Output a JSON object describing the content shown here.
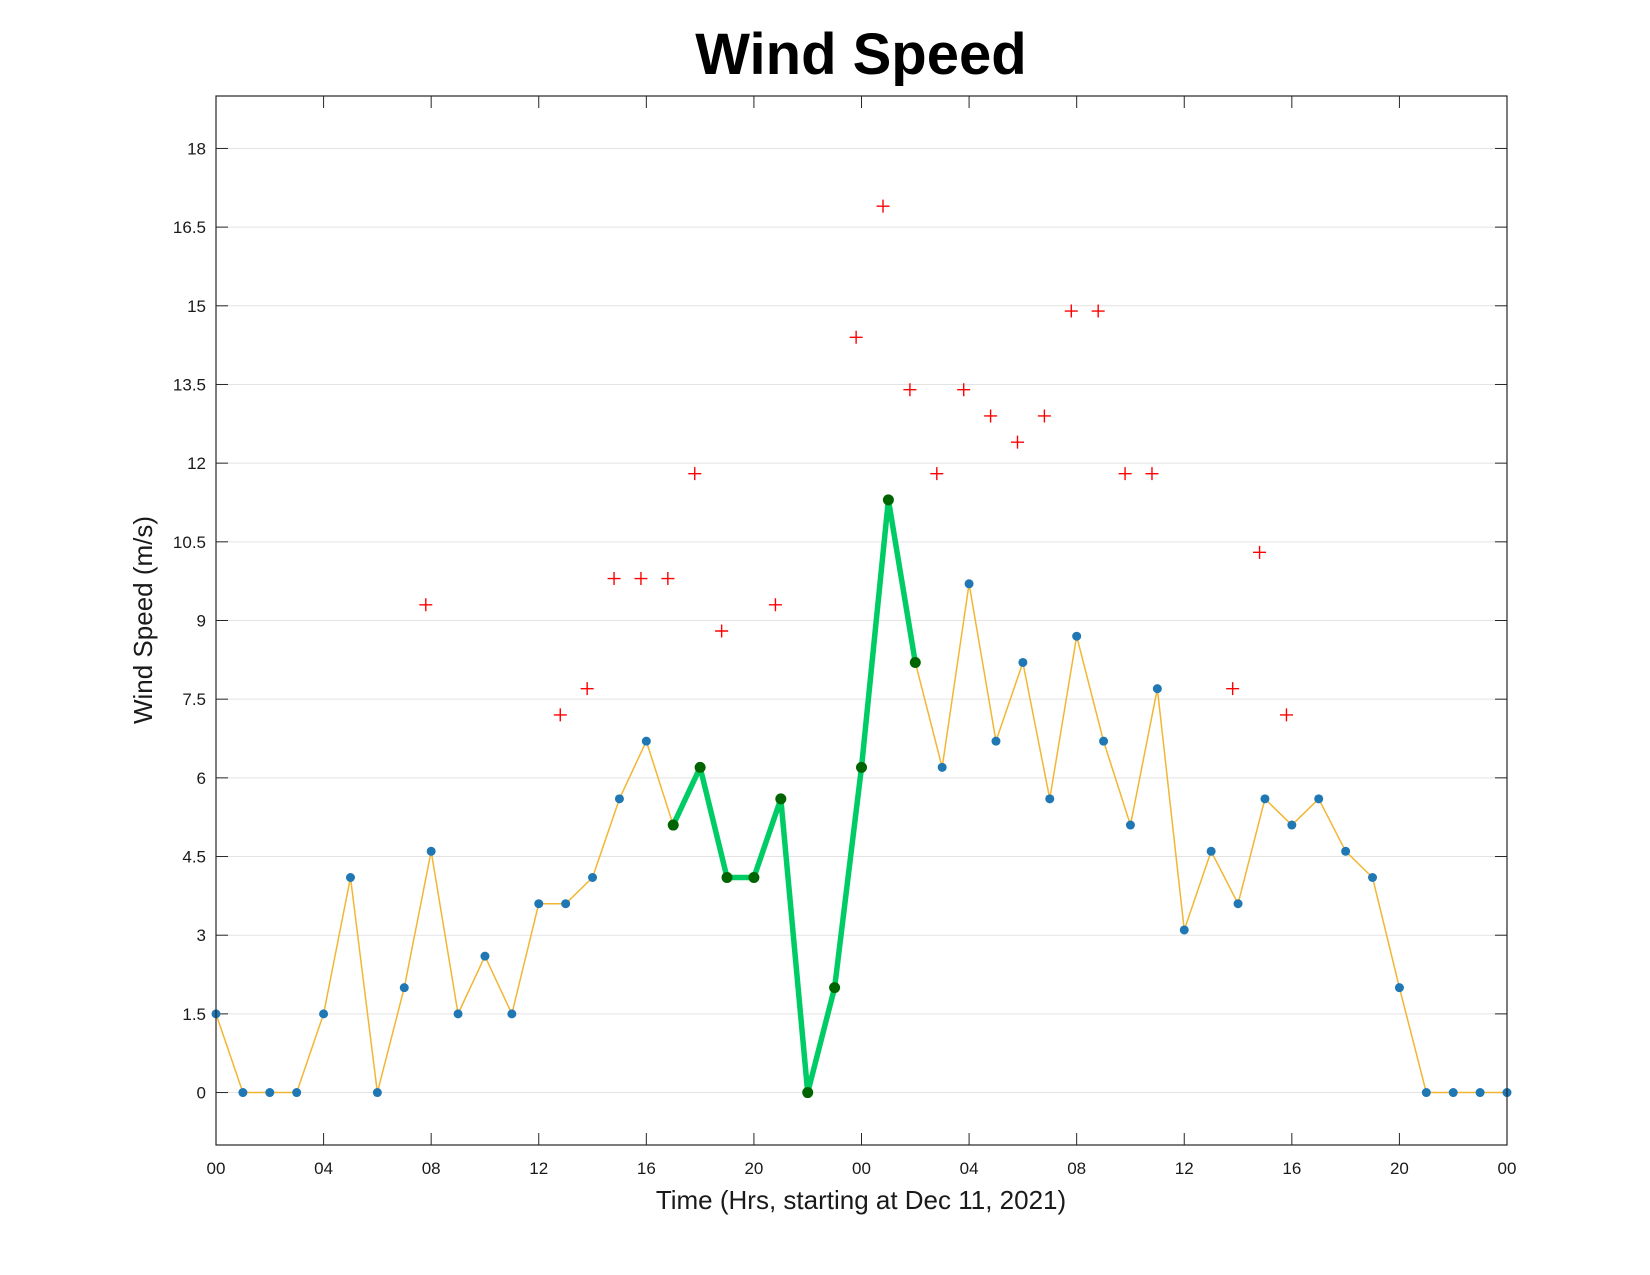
{
  "chart_data": {
    "type": "line",
    "title": "Wind Speed",
    "xlabel": "Time (Hrs, starting at Dec 11, 2021)",
    "ylabel": "Wind Speed (m/s)",
    "xlim": [
      0,
      48
    ],
    "ylim": [
      -1,
      19
    ],
    "x_tick_values": [
      0,
      4,
      8,
      12,
      16,
      20,
      24,
      28,
      32,
      36,
      40,
      44,
      48
    ],
    "x_tick_labels": [
      "00",
      "04",
      "08",
      "12",
      "16",
      "20",
      "00",
      "04",
      "08",
      "12",
      "16",
      "20",
      "00"
    ],
    "y_tick_values": [
      0,
      1.5,
      3,
      4.5,
      6,
      7.5,
      9,
      10.5,
      12,
      13.5,
      15,
      16.5,
      18
    ],
    "y_tick_labels": [
      "0",
      "1.5",
      "3",
      "4.5",
      "6",
      "7.5",
      "9",
      "10.5",
      "12",
      "13.5",
      "15",
      "16.5",
      "18"
    ],
    "grid": true,
    "colors": {
      "line": "#f2b632",
      "marker": "#1f77b4",
      "highlight_line": "#00cc66",
      "highlight_marker": "#006400",
      "gust": "#ff0000"
    },
    "series": [
      {
        "style": "line-with-markers",
        "x": [
          0,
          1,
          2,
          3,
          4,
          5,
          6,
          7,
          8,
          9,
          10,
          11,
          12,
          13,
          14,
          15,
          16,
          17,
          18,
          19,
          20,
          21,
          22,
          23,
          24,
          25,
          26,
          27,
          28,
          29,
          30,
          31,
          32,
          33,
          34,
          35,
          36,
          37,
          38,
          39,
          40,
          41,
          42,
          43,
          44,
          45,
          46,
          47,
          48
        ],
        "y": [
          1.5,
          0,
          0,
          0,
          1.5,
          4.1,
          0,
          2.0,
          4.6,
          1.5,
          2.6,
          1.5,
          3.6,
          3.6,
          4.1,
          5.6,
          6.7,
          5.1,
          6.2,
          4.1,
          4.1,
          5.6,
          0,
          2.0,
          6.2,
          11.3,
          8.2,
          6.2,
          9.7,
          6.7,
          8.2,
          5.6,
          8.7,
          6.7,
          5.1,
          7.7,
          3.1,
          4.6,
          3.6,
          5.6,
          5.1,
          5.6,
          4.6,
          4.1,
          2.0,
          0,
          0,
          0,
          0
        ]
      },
      {
        "style": "highlight",
        "x": [
          17,
          18,
          19,
          20,
          21,
          22,
          23,
          24,
          25,
          26
        ],
        "y": [
          5.1,
          6.2,
          4.1,
          4.1,
          5.6,
          0,
          2.0,
          6.2,
          11.3,
          8.2
        ]
      },
      {
        "style": "gust-markers",
        "x": [
          7.8,
          12.8,
          13.8,
          14.8,
          15.8,
          16.8,
          17.8,
          18.8,
          20.8,
          23.8,
          24.8,
          25.8,
          26.8,
          27.8,
          28.8,
          29.8,
          30.8,
          31.8,
          32.8,
          33.8,
          34.8,
          37.8,
          38.8,
          39.8
        ],
        "y": [
          9.3,
          7.2,
          7.7,
          9.8,
          9.8,
          9.8,
          11.8,
          8.8,
          9.3,
          14.4,
          16.9,
          13.4,
          11.8,
          13.4,
          12.9,
          12.4,
          12.9,
          14.9,
          14.9,
          11.8,
          11.8,
          7.7,
          10.3,
          7.2
        ]
      }
    ]
  }
}
